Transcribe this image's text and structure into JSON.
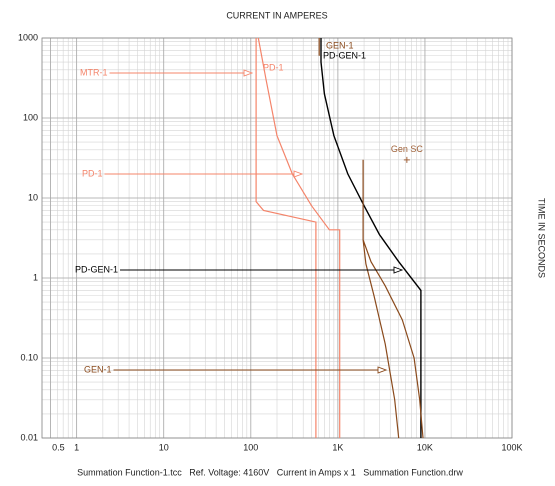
{
  "chart_data": {
    "type": "line",
    "title": "CURRENT IN AMPERES",
    "y_label": "TIME IN SECONDS",
    "footer": "Summation Function-1.tcc   Ref. Voltage: 4160V   Current in Amps x 1   Summation Function.drw",
    "x_log": true,
    "y_log": true,
    "grid": true,
    "xlim": [
      0.4,
      100000
    ],
    "ylim": [
      0.01,
      1000
    ],
    "xticks": [
      0.5,
      1,
      10,
      100,
      {
        "value": 1000,
        "label": "1K"
      },
      {
        "value": 10000,
        "label": "10K"
      },
      {
        "value": 100000,
        "label": "100K"
      }
    ],
    "yticks": [
      1000,
      100,
      10,
      1,
      {
        "value": 0.1,
        "label": "0.10"
      },
      0.01
    ],
    "series": [
      {
        "name": "MTR-1",
        "color": "#f4846a",
        "x": [
          115,
          115,
          140,
          560,
          560
        ],
        "y": [
          1000,
          9,
          7,
          5,
          0.01
        ]
      },
      {
        "name": "PD-1",
        "color": "#f4846a",
        "x": [
          122,
          150,
          200,
          300,
          500,
          800,
          1050,
          1050
        ],
        "y": [
          1000,
          300,
          60,
          20,
          8,
          4,
          4,
          0.01
        ]
      },
      {
        "name": "PD-GEN-1",
        "color": "#000000",
        "x": [
          640,
          640,
          700,
          900,
          1300,
          2000,
          3000,
          5000,
          9000,
          9000
        ],
        "y": [
          1000,
          500,
          200,
          60,
          20,
          8,
          3.5,
          1.6,
          0.7,
          0.01
        ]
      },
      {
        "name": "GEN-1",
        "color": "#8a4a1c",
        "x": [
          610,
          610,
          null,
          1950,
          1950,
          2100,
          2600,
          3500,
          4500,
          5000,
          null,
          1950,
          2400,
          3500,
          5500,
          7500,
          8700,
          9500
        ],
        "y": [
          1000,
          600,
          null,
          30,
          3,
          1.5,
          0.6,
          0.15,
          0.03,
          0.01,
          null,
          3,
          1.6,
          0.8,
          0.3,
          0.1,
          0.03,
          0.01
        ]
      }
    ],
    "points": [
      {
        "name": "Gen SC",
        "color": "#a0623a",
        "x": 6200,
        "y": 30
      }
    ]
  }
}
